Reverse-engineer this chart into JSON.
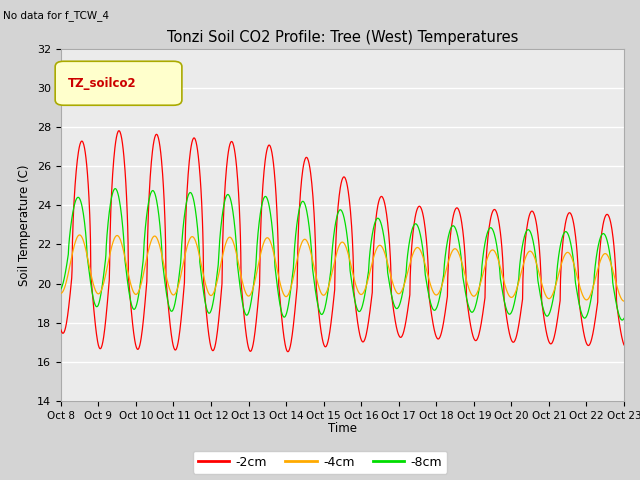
{
  "title": "Tonzi Soil CO2 Profile: Tree (West) Temperatures",
  "subtitle": "No data for f_TCW_4",
  "ylabel": "Soil Temperature (C)",
  "xlabel": "Time",
  "legend_label": "TZ_soilco2",
  "ylim": [
    14,
    32
  ],
  "series_labels": [
    "-2cm",
    "-4cm",
    "-8cm"
  ],
  "series_colors": [
    "#ff0000",
    "#ffaa00",
    "#00dd00"
  ],
  "xtick_labels": [
    "Oct 8",
    "Oct 9",
    "Oct 10",
    "Oct 11",
    "Oct 12",
    "Oct 13",
    "Oct 14",
    "Oct 15",
    "Oct 16",
    "Oct 17",
    "Oct 18",
    "Oct 19",
    "Oct 20",
    "Oct 21",
    "Oct 22",
    "Oct 23"
  ],
  "plot_bg_color": "#ebebeb",
  "fig_bg_color": "#d4d4d4",
  "n_points": 1500
}
